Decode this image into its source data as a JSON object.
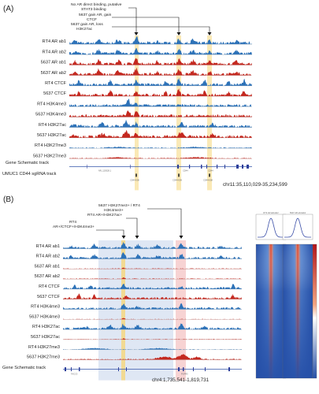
{
  "figure": {
    "panels": [
      {
        "label": "(A)",
        "annotations": [
          "No AR direct binding, putative",
          "STAT3 binding",
          "5637 gain AR, gain",
          "CTCF",
          "5637 gain AR, loss",
          "H3K27ac"
        ],
        "tracks": [
          {
            "label": "RT4 AR ab1",
            "color": "#2d72b8"
          },
          {
            "label": "RT4 AR ab2",
            "color": "#2d72b8"
          },
          {
            "label": "5637 AR ab1",
            "color": "#c4281f"
          },
          {
            "label": "5637 AR ab2",
            "color": "#c4281f"
          },
          {
            "label": "RT4 CTCF",
            "color": "#2d72b8"
          },
          {
            "label": "5637 CTCF",
            "color": "#c4281f"
          },
          {
            "label": "RT4 H3K4me3",
            "color": "#2d72b8"
          },
          {
            "label": "5637 H3K4me3",
            "color": "#c4281f"
          },
          {
            "label": "RT4 H3K27ac",
            "color": "#2d72b8"
          },
          {
            "label": "5637 H3K27ac",
            "color": "#c4281f"
          },
          {
            "label": "RT4 H3K27me3",
            "color": "#2d72b8"
          },
          {
            "label": "5637 H3K27me3",
            "color": "#c4281f"
          }
        ],
        "gene_track_label": "Gene Schematic track",
        "sgrna_track_label": "UMUC1 CD44 sgRNA track",
        "gene_names": [
          "NR_120528.1",
          "CD44",
          "CD44"
        ],
        "sgrna_names": [
          "CD44-006",
          "CD44-009",
          "CD44-008"
        ],
        "coordinates": "chr11:35,110,029-35,234,599"
      },
      {
        "label": "(B)",
        "annotations": [
          "5637 H3K27me3+ / RT4",
          "H3K4me3+",
          "RT4 AR+/H3K27ac+",
          "RT4",
          "AR+/CTCF+/H3K4me3+"
        ],
        "tracks": [
          {
            "label": "RT4 AR ab1",
            "color": "#2d72b8"
          },
          {
            "label": "RT4 AR ab2",
            "color": "#2d72b8"
          },
          {
            "label": "5637 AR ab1",
            "color": "#c4281f"
          },
          {
            "label": "5637 AR ab2",
            "color": "#c4281f"
          },
          {
            "label": "RT4 CTCF",
            "color": "#2d72b8"
          },
          {
            "label": "5637 CTCF",
            "color": "#c4281f"
          },
          {
            "label": "RT4 H3K4me3",
            "color": "#2d72b8"
          },
          {
            "label": "5637 H3K4me3",
            "color": "#c4281f"
          },
          {
            "label": "RT4 H3K27ac",
            "color": "#2d72b8"
          },
          {
            "label": "5637 H3K27ac",
            "color": "#c4281f"
          },
          {
            "label": "RT4 H3K27me3",
            "color": "#2d72b8"
          },
          {
            "label": "5637 H3K27me3",
            "color": "#c4281f"
          }
        ],
        "gene_track_label": "Gene Schematic track",
        "gene_names": [
          "TACC3",
          "FGFR3"
        ],
        "coordinates": "chr4:1,735,541-1,819,731",
        "heatmap_titles": [
          "RT4 AR ab1/ab2",
          "5637 AR ab1/ab2"
        ]
      }
    ],
    "colors": {
      "rt4_blue": "#2d72b8",
      "c5637_red": "#c4281f",
      "highlight_yellow": "#f6d77a",
      "highlight_blue": "#b7c9e6",
      "highlight_pink": "#f2b5b5",
      "heatmap_high": "#b3141b",
      "heatmap_low": "#2650a8"
    }
  }
}
